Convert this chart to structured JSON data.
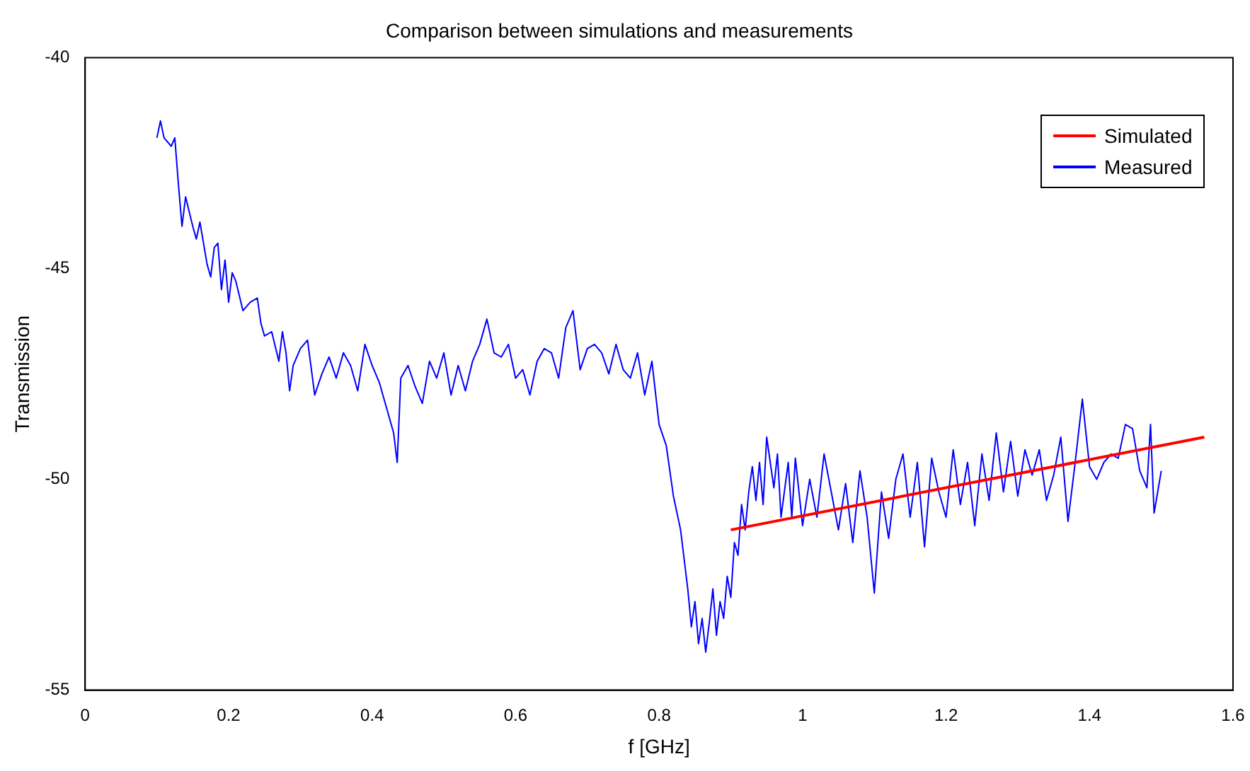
{
  "chart_data": {
    "type": "line",
    "title": "Comparison between simulations and measurements",
    "xlabel": "f [GHz]",
    "ylabel": "Transmission",
    "xlim": [
      0,
      1.6
    ],
    "xticks": [
      0,
      0.2,
      0.4,
      0.6,
      0.8,
      1,
      1.2,
      1.4,
      1.6
    ],
    "ylim": [
      -55,
      -40
    ],
    "yticks": [
      -55,
      -50,
      -45,
      -40
    ],
    "grid": false,
    "legend": "top right",
    "marker": "none",
    "line_style": "solid",
    "series": [
      {
        "name": "Simulated",
        "color": "#ff0000",
        "x": [
          0.9,
          1.56
        ],
        "values": [
          -51.2,
          -49.0
        ]
      },
      {
        "name": "Measured",
        "color": "#0000ff",
        "x": [
          0.1,
          0.105,
          0.11,
          0.12,
          0.125,
          0.13,
          0.135,
          0.14,
          0.15,
          0.155,
          0.16,
          0.17,
          0.175,
          0.18,
          0.185,
          0.19,
          0.195,
          0.2,
          0.205,
          0.21,
          0.22,
          0.23,
          0.24,
          0.245,
          0.25,
          0.26,
          0.27,
          0.275,
          0.28,
          0.285,
          0.29,
          0.3,
          0.31,
          0.32,
          0.33,
          0.34,
          0.35,
          0.36,
          0.37,
          0.38,
          0.39,
          0.4,
          0.41,
          0.42,
          0.43,
          0.435,
          0.44,
          0.45,
          0.46,
          0.47,
          0.48,
          0.49,
          0.5,
          0.51,
          0.52,
          0.53,
          0.54,
          0.55,
          0.56,
          0.57,
          0.58,
          0.59,
          0.6,
          0.61,
          0.62,
          0.63,
          0.64,
          0.65,
          0.66,
          0.67,
          0.68,
          0.69,
          0.7,
          0.71,
          0.72,
          0.73,
          0.74,
          0.75,
          0.76,
          0.77,
          0.78,
          0.785,
          0.79,
          0.8,
          0.81,
          0.82,
          0.83,
          0.84,
          0.845,
          0.85,
          0.855,
          0.86,
          0.865,
          0.87,
          0.875,
          0.88,
          0.885,
          0.89,
          0.895,
          0.9,
          0.905,
          0.91,
          0.915,
          0.92,
          0.925,
          0.93,
          0.935,
          0.94,
          0.945,
          0.95,
          0.96,
          0.965,
          0.97,
          0.98,
          0.985,
          0.99,
          1,
          1.01,
          1.02,
          1.03,
          1.04,
          1.05,
          1.06,
          1.07,
          1.08,
          1.09,
          1.1,
          1.11,
          1.12,
          1.13,
          1.14,
          1.15,
          1.16,
          1.17,
          1.18,
          1.19,
          1.2,
          1.21,
          1.22,
          1.23,
          1.24,
          1.25,
          1.26,
          1.27,
          1.28,
          1.29,
          1.3,
          1.31,
          1.32,
          1.33,
          1.34,
          1.35,
          1.36,
          1.37,
          1.38,
          1.39,
          1.4,
          1.41,
          1.42,
          1.43,
          1.44,
          1.45,
          1.46,
          1.47,
          1.48,
          1.485,
          1.49,
          1.495,
          1.5
        ],
        "values": [
          -41.9,
          -41.5,
          -41.9,
          -42.1,
          -41.9,
          -43.0,
          -44.0,
          -43.3,
          -44.0,
          -44.3,
          -43.9,
          -44.9,
          -45.2,
          -44.5,
          -44.4,
          -45.5,
          -44.8,
          -45.8,
          -45.1,
          -45.3,
          -46.0,
          -45.8,
          -45.7,
          -46.3,
          -46.6,
          -46.5,
          -47.2,
          -46.5,
          -47.0,
          -47.9,
          -47.3,
          -46.9,
          -46.7,
          -48.0,
          -47.5,
          -47.1,
          -47.6,
          -47.0,
          -47.3,
          -47.9,
          -46.8,
          -47.3,
          -47.7,
          -48.3,
          -48.9,
          -49.6,
          -47.6,
          -47.3,
          -47.8,
          -48.2,
          -47.2,
          -47.6,
          -47.0,
          -48.0,
          -47.3,
          -47.9,
          -47.2,
          -46.8,
          -46.2,
          -47.0,
          -47.1,
          -46.8,
          -47.6,
          -47.4,
          -48.0,
          -47.2,
          -46.9,
          -47.0,
          -47.6,
          -46.4,
          -46.0,
          -47.4,
          -46.9,
          -46.8,
          -47.0,
          -47.5,
          -46.8,
          -47.4,
          -47.6,
          -47.0,
          -48.0,
          -47.6,
          -47.2,
          -48.7,
          -49.2,
          -50.4,
          -51.2,
          -52.6,
          -53.5,
          -52.9,
          -53.9,
          -53.3,
          -54.1,
          -53.4,
          -52.6,
          -53.7,
          -52.9,
          -53.3,
          -52.3,
          -52.8,
          -51.5,
          -51.8,
          -50.6,
          -51.2,
          -50.3,
          -49.7,
          -50.5,
          -49.6,
          -50.6,
          -49.0,
          -50.2,
          -49.4,
          -50.9,
          -49.6,
          -50.9,
          -49.5,
          -51.1,
          -50.0,
          -50.9,
          -49.4,
          -50.3,
          -51.2,
          -50.1,
          -51.5,
          -49.8,
          -50.9,
          -52.7,
          -50.3,
          -51.4,
          -50.0,
          -49.4,
          -50.9,
          -49.6,
          -51.6,
          -49.5,
          -50.3,
          -50.9,
          -49.3,
          -50.6,
          -49.6,
          -51.1,
          -49.4,
          -50.5,
          -48.9,
          -50.3,
          -49.1,
          -50.4,
          -49.3,
          -49.9,
          -49.3,
          -50.5,
          -49.9,
          -49.0,
          -51.0,
          -49.6,
          -48.1,
          -49.7,
          -50.0,
          -49.6,
          -49.4,
          -49.5,
          -48.7,
          -48.8,
          -49.8,
          -50.2,
          -48.7,
          -50.8,
          -50.3,
          -49.8
        ]
      }
    ]
  }
}
